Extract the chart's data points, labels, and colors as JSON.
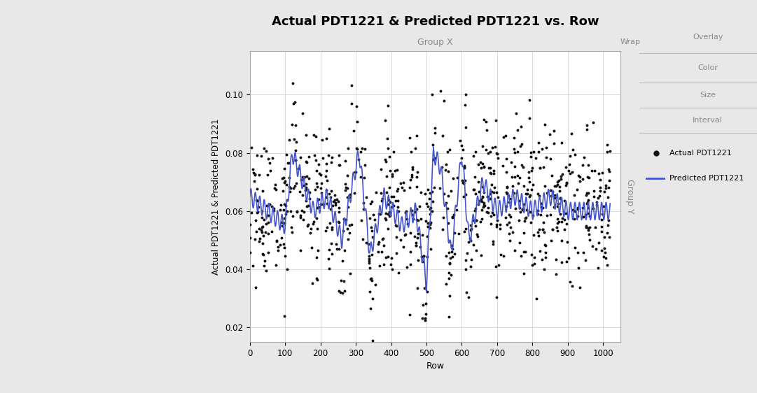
{
  "title": "Actual PDT1221 & Predicted PDT1221 vs. Row",
  "xlabel": "Row",
  "ylabel": "Actual PDT1221 & Predicted PDT1221",
  "xlim": [
    0,
    1050
  ],
  "ylim": [
    0.015,
    0.115
  ],
  "xticks": [
    0,
    100,
    200,
    300,
    400,
    500,
    600,
    700,
    800,
    900,
    1000
  ],
  "yticks": [
    0.02,
    0.04,
    0.06,
    0.08,
    0.1
  ],
  "scatter_color": "#111111",
  "line_color": "#4455cc",
  "bg_color": "#ffffff",
  "panel_bg": "#f0f0f0",
  "legend_dot_label": "Actual PDT1221",
  "legend_line_label": "Predicted PDT1221",
  "group_x_label": "Group X",
  "group_y_label": "Group Y",
  "outer_bg": "#e8e8e8",
  "seed": 42,
  "n_points": 900
}
